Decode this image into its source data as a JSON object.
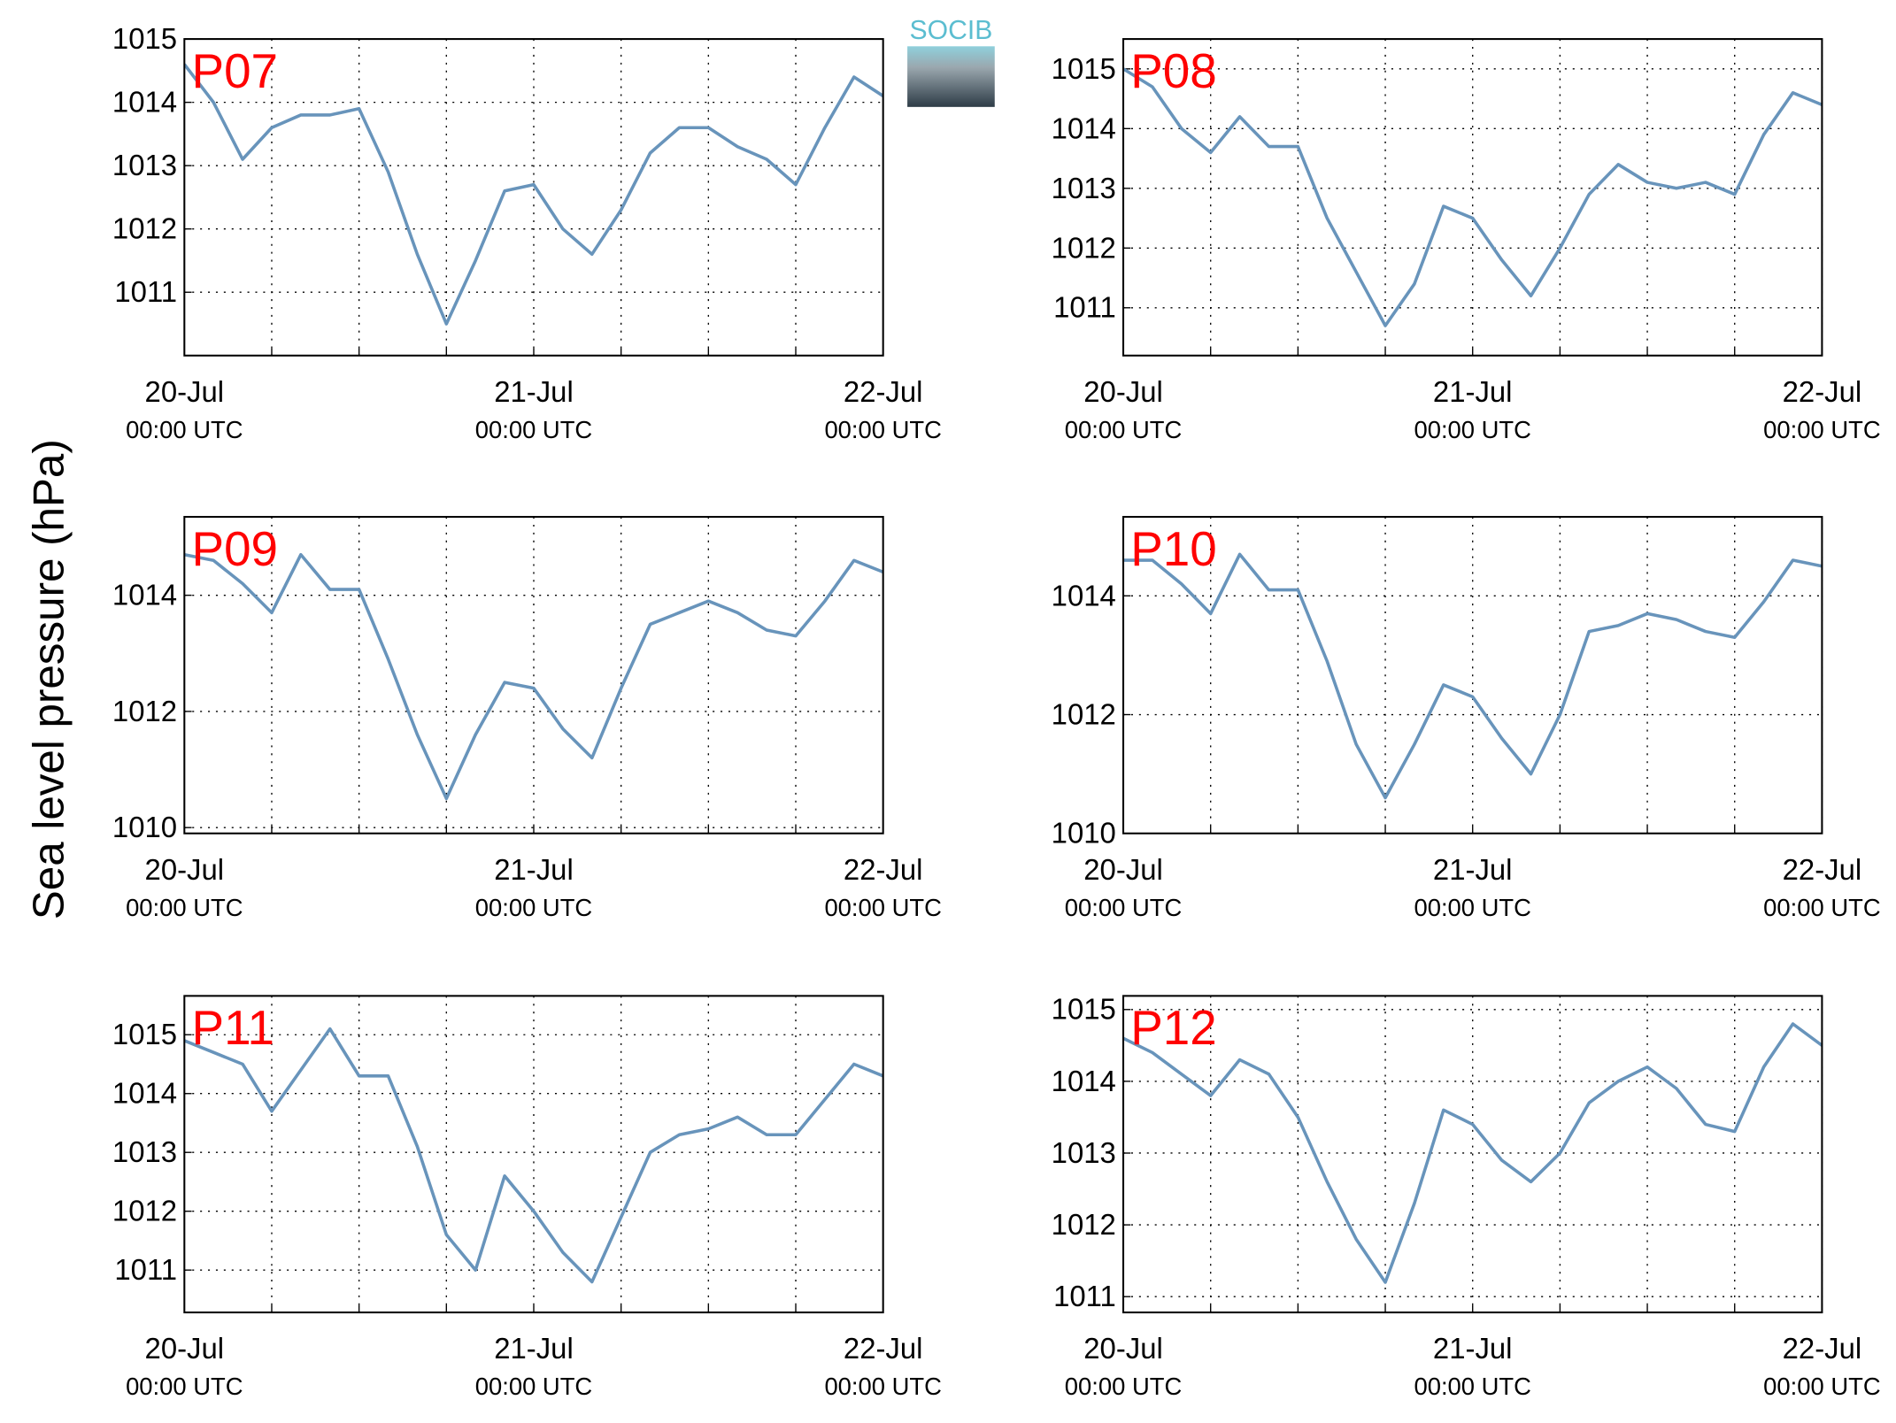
{
  "ylabel": "Sea level pressure (hPa)",
  "logo": "SOCIB",
  "chart_data": [
    {
      "type": "line",
      "title": "P07",
      "color": "#6894bb",
      "x": [
        0,
        2,
        4,
        6,
        8,
        10,
        12,
        14,
        16,
        18,
        20,
        22,
        24,
        26,
        28,
        30,
        32,
        34,
        36,
        38,
        40,
        42,
        44,
        46,
        48
      ],
      "values": [
        1014.6,
        1014.0,
        1013.1,
        1013.6,
        1013.8,
        1013.8,
        1013.9,
        1012.9,
        1011.6,
        1010.5,
        1011.5,
        1012.6,
        1012.7,
        1012.0,
        1011.6,
        1012.3,
        1013.2,
        1013.6,
        1013.6,
        1013.3,
        1013.1,
        1012.7,
        1013.6,
        1014.4,
        1014.1
      ],
      "xlim": [
        0,
        48
      ],
      "xticks": [
        {
          "value": 0,
          "label": "20-Jul"
        },
        {
          "value": 24,
          "label": "21-Jul"
        },
        {
          "value": 48,
          "label": "22-Jul"
        }
      ],
      "xtick_sublabel": "00:00 UTC",
      "xgrid": [
        0,
        6,
        12,
        18,
        24,
        30,
        36,
        42,
        48
      ],
      "ylim": [
        1010.0,
        1015.0
      ],
      "yticks": [
        1011,
        1012,
        1013,
        1014,
        1015
      ],
      "grid": true
    },
    {
      "type": "line",
      "title": "P08",
      "color": "#6894bb",
      "x": [
        0,
        2,
        4,
        6,
        8,
        10,
        12,
        14,
        16,
        18,
        20,
        22,
        24,
        26,
        28,
        30,
        32,
        34,
        36,
        38,
        40,
        42,
        44,
        46,
        48
      ],
      "values": [
        1015.0,
        1014.7,
        1014.0,
        1013.6,
        1014.2,
        1013.7,
        1013.7,
        1012.5,
        1011.6,
        1010.7,
        1011.4,
        1012.7,
        1012.5,
        1011.8,
        1011.2,
        1012.0,
        1012.9,
        1013.4,
        1013.1,
        1013.0,
        1013.1,
        1012.9,
        1013.9,
        1014.6,
        1014.4
      ],
      "xlim": [
        0,
        48
      ],
      "xticks": [
        {
          "value": 0,
          "label": "20-Jul"
        },
        {
          "value": 24,
          "label": "21-Jul"
        },
        {
          "value": 48,
          "label": "22-Jul"
        }
      ],
      "xtick_sublabel": "00:00 UTC",
      "xgrid": [
        0,
        6,
        12,
        18,
        24,
        30,
        36,
        42,
        48
      ],
      "ylim": [
        1010.2,
        1015.5
      ],
      "yticks": [
        1011,
        1012,
        1013,
        1014,
        1015
      ],
      "grid": true
    },
    {
      "type": "line",
      "title": "P09",
      "color": "#6894bb",
      "x": [
        0,
        2,
        4,
        6,
        8,
        10,
        12,
        14,
        16,
        18,
        20,
        22,
        24,
        26,
        28,
        30,
        32,
        34,
        36,
        38,
        40,
        42,
        44,
        46,
        48
      ],
      "values": [
        1014.7,
        1014.6,
        1014.2,
        1013.7,
        1014.7,
        1014.1,
        1014.1,
        1012.9,
        1011.6,
        1010.5,
        1011.6,
        1012.5,
        1012.4,
        1011.7,
        1011.2,
        1012.4,
        1013.5,
        1013.7,
        1013.9,
        1013.7,
        1013.4,
        1013.3,
        1013.9,
        1014.6,
        1014.4
      ],
      "xlim": [
        0,
        48
      ],
      "xticks": [
        {
          "value": 0,
          "label": "20-Jul"
        },
        {
          "value": 24,
          "label": "21-Jul"
        },
        {
          "value": 48,
          "label": "22-Jul"
        }
      ],
      "xtick_sublabel": "00:00 UTC",
      "xgrid": [
        0,
        6,
        12,
        18,
        24,
        30,
        36,
        42,
        48
      ],
      "ylim": [
        1009.9,
        1015.35
      ],
      "yticks": [
        1010,
        1012,
        1014
      ],
      "grid": true
    },
    {
      "type": "line",
      "title": "P10",
      "color": "#6894bb",
      "x": [
        0,
        2,
        4,
        6,
        8,
        10,
        12,
        14,
        16,
        18,
        20,
        22,
        24,
        26,
        28,
        30,
        32,
        34,
        36,
        38,
        40,
        42,
        44,
        46,
        48
      ],
      "values": [
        1014.6,
        1014.6,
        1014.2,
        1013.7,
        1014.7,
        1014.1,
        1014.1,
        1012.9,
        1011.5,
        1010.6,
        1011.5,
        1012.5,
        1012.3,
        1011.6,
        1011.0,
        1012.0,
        1013.4,
        1013.5,
        1013.7,
        1013.6,
        1013.4,
        1013.3,
        1013.9,
        1014.6,
        1014.5
      ],
      "xlim": [
        0,
        48
      ],
      "xticks": [
        {
          "value": 0,
          "label": "20-Jul"
        },
        {
          "value": 24,
          "label": "21-Jul"
        },
        {
          "value": 48,
          "label": "22-Jul"
        }
      ],
      "xtick_sublabel": "00:00 UTC",
      "xgrid": [
        0,
        6,
        12,
        18,
        24,
        30,
        36,
        42,
        48
      ],
      "ylim": [
        1010.0,
        1015.33
      ],
      "yticks": [
        1010,
        1012,
        1014
      ],
      "grid": true
    },
    {
      "type": "line",
      "title": "P11",
      "color": "#6894bb",
      "x": [
        0,
        2,
        4,
        6,
        8,
        10,
        12,
        14,
        16,
        18,
        20,
        22,
        24,
        26,
        28,
        30,
        32,
        34,
        36,
        38,
        40,
        42,
        44,
        46,
        48
      ],
      "values": [
        1014.9,
        1014.7,
        1014.5,
        1013.7,
        1014.4,
        1015.1,
        1014.3,
        1014.3,
        1013.1,
        1011.6,
        1011.0,
        1012.6,
        1012.0,
        1011.3,
        1010.8,
        1011.9,
        1013.0,
        1013.3,
        1013.4,
        1013.6,
        1013.3,
        1013.3,
        1013.9,
        1014.5,
        1014.3
      ],
      "xlim": [
        0,
        48
      ],
      "xticks": [
        {
          "value": 0,
          "label": "20-Jul"
        },
        {
          "value": 24,
          "label": "21-Jul"
        },
        {
          "value": 48,
          "label": "22-Jul"
        }
      ],
      "xtick_sublabel": "00:00 UTC",
      "xgrid": [
        0,
        6,
        12,
        18,
        24,
        30,
        36,
        42,
        48
      ],
      "ylim": [
        1010.28,
        1015.66
      ],
      "yticks": [
        1011,
        1012,
        1013,
        1014,
        1015
      ],
      "grid": true
    },
    {
      "type": "line",
      "title": "P12",
      "color": "#6894bb",
      "x": [
        0,
        2,
        4,
        6,
        8,
        10,
        12,
        14,
        16,
        18,
        20,
        22,
        24,
        26,
        28,
        30,
        32,
        34,
        36,
        38,
        40,
        42,
        44,
        46,
        48
      ],
      "values": [
        1014.6,
        1014.4,
        1014.1,
        1013.8,
        1014.3,
        1014.1,
        1013.5,
        1012.6,
        1011.8,
        1011.2,
        1012.3,
        1013.6,
        1013.4,
        1012.9,
        1012.6,
        1013.0,
        1013.7,
        1014.0,
        1014.2,
        1013.9,
        1013.4,
        1013.3,
        1014.2,
        1014.8,
        1014.5
      ],
      "xlim": [
        0,
        48
      ],
      "xticks": [
        {
          "value": 0,
          "label": "20-Jul"
        },
        {
          "value": 24,
          "label": "21-Jul"
        },
        {
          "value": 48,
          "label": "22-Jul"
        }
      ],
      "xtick_sublabel": "00:00 UTC",
      "xgrid": [
        0,
        6,
        12,
        18,
        24,
        30,
        36,
        42,
        48
      ],
      "ylim": [
        1010.78,
        1015.19
      ],
      "yticks": [
        1011,
        1012,
        1013,
        1014,
        1015
      ],
      "grid": true
    }
  ]
}
